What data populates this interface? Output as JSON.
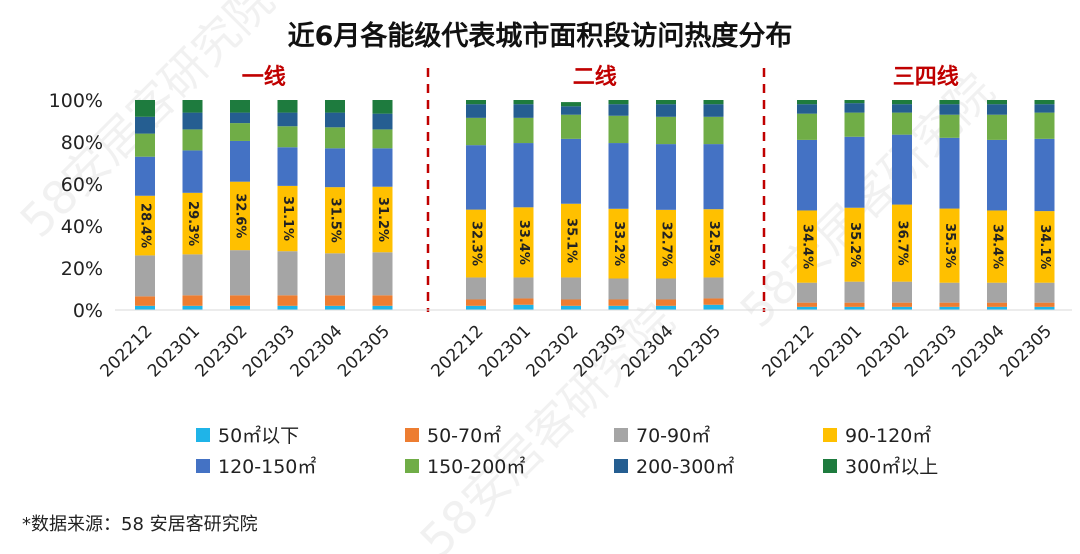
{
  "chart_data": {
    "type": "bar",
    "stacked": true,
    "title": "近6月各能级代表城市面积段访问热度分布",
    "group_labels": [
      "一线",
      "二线",
      "三四线"
    ],
    "categories": [
      "202212",
      "202301",
      "202302",
      "202303",
      "202304",
      "202305"
    ],
    "yticks": [
      "0%",
      "20%",
      "40%",
      "60%",
      "80%",
      "100%"
    ],
    "ylim": [
      0,
      100
    ],
    "series": [
      {
        "name": "50㎡以下",
        "color": "#1fb4e8",
        "values": [
          [
            2.0,
            2.0,
            2.0,
            2.0,
            2.0,
            2.0
          ],
          [
            2.0,
            2.5,
            2.0,
            2.0,
            2.0,
            2.5
          ],
          [
            1.5,
            1.5,
            1.5,
            1.5,
            1.5,
            1.5
          ]
        ]
      },
      {
        "name": "50-70㎡",
        "color": "#ed7d31",
        "values": [
          [
            4.5,
            5.0,
            5.0,
            5.0,
            5.0,
            5.0
          ],
          [
            3.0,
            3.0,
            3.0,
            3.0,
            3.0,
            3.0
          ],
          [
            2.0,
            2.0,
            2.0,
            2.0,
            2.0,
            2.0
          ]
        ]
      },
      {
        "name": "70-90㎡",
        "color": "#a5a5a5",
        "values": [
          [
            19.5,
            19.5,
            21.5,
            21.0,
            20.0,
            20.5
          ],
          [
            10.5,
            10.0,
            10.5,
            10.0,
            10.0,
            10.0
          ],
          [
            9.5,
            10.0,
            10.0,
            9.5,
            9.5,
            9.5
          ]
        ]
      },
      {
        "name": "90-120㎡",
        "color": "#ffc000",
        "values": [
          [
            28.4,
            29.3,
            32.6,
            31.1,
            31.5,
            31.2
          ],
          [
            32.3,
            33.4,
            35.1,
            33.2,
            32.7,
            32.5
          ],
          [
            34.4,
            35.2,
            36.7,
            35.3,
            34.4,
            34.1
          ]
        ]
      },
      {
        "name": "120-150㎡",
        "color": "#4472c4",
        "values": [
          [
            18.6,
            20.2,
            19.4,
            18.4,
            18.5,
            18.3
          ],
          [
            30.7,
            30.6,
            30.9,
            31.3,
            31.3,
            31.0
          ],
          [
            33.6,
            33.8,
            33.3,
            33.7,
            33.6,
            34.4
          ]
        ]
      },
      {
        "name": "150-200㎡",
        "color": "#70ad47",
        "values": [
          [
            11.0,
            10.0,
            8.5,
            10.0,
            10.0,
            9.0
          ],
          [
            13.0,
            12.0,
            11.5,
            13.0,
            13.0,
            13.0
          ],
          [
            12.5,
            11.5,
            10.5,
            11.0,
            12.0,
            12.5
          ]
        ]
      },
      {
        "name": "200-300㎡",
        "color": "#255e91",
        "values": [
          [
            8.0,
            8.0,
            5.0,
            6.5,
            7.0,
            7.5
          ],
          [
            6.5,
            6.5,
            4.0,
            5.5,
            6.0,
            6.0
          ],
          [
            4.5,
            4.5,
            4.0,
            5.0,
            5.0,
            4.0
          ]
        ]
      },
      {
        "name": "300㎡以上",
        "color": "#1e7b3e",
        "values": [
          [
            8.0,
            6.0,
            6.0,
            6.0,
            6.0,
            6.5
          ],
          [
            2.0,
            2.0,
            2.0,
            2.0,
            2.0,
            2.0
          ],
          [
            2.0,
            1.5,
            2.0,
            2.0,
            2.0,
            2.0
          ]
        ]
      }
    ],
    "data_labels": [
      [
        "28.4%",
        "29.3%",
        "32.6%",
        "31.1%",
        "31.5%",
        "31.2%"
      ],
      [
        "32.3%",
        "33.4%",
        "35.1%",
        "33.2%",
        "32.7%",
        "32.5%"
      ],
      [
        "34.4%",
        "35.2%",
        "36.7%",
        "35.3%",
        "34.4%",
        "34.1%"
      ]
    ],
    "labeled_series": "90-120㎡"
  },
  "legend_colors": [
    "#1fb4e8",
    "#ed7d31",
    "#a5a5a5",
    "#ffc000",
    "#4472c4",
    "#70ad47",
    "#255e91",
    "#1e7b3e"
  ],
  "divider_color": "#c00000",
  "source": "*数据来源：58 安居客研究院",
  "watermark": "58安居客研究院"
}
